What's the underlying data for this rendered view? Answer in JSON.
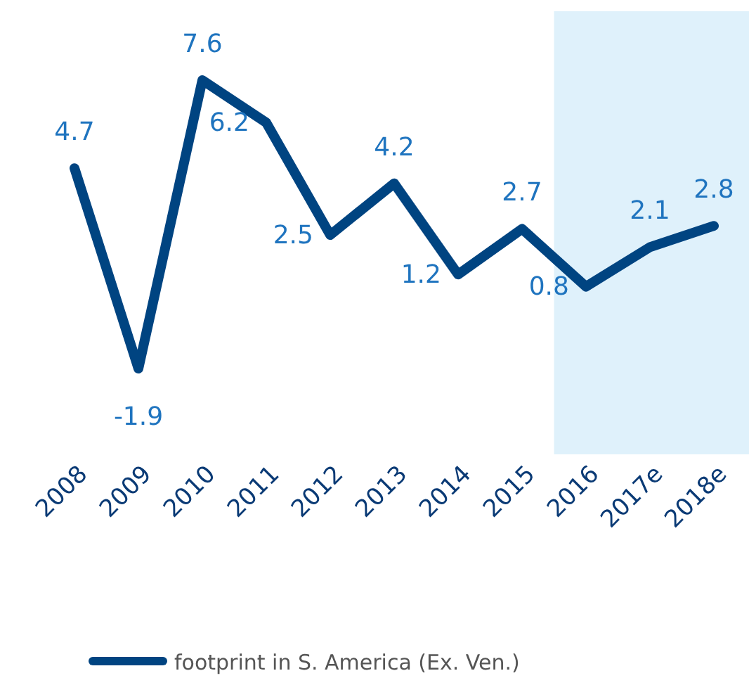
{
  "chart_data": {
    "type": "line",
    "categories": [
      "2008",
      "2009",
      "2010",
      "2011",
      "2012",
      "2013",
      "2014",
      "2015",
      "2016",
      "2017e",
      "2018e"
    ],
    "series": [
      {
        "name": "footprint in S. America (Ex. Ven.)",
        "color": "#004481",
        "values": [
          4.7,
          -1.9,
          7.6,
          6.2,
          2.5,
          4.2,
          1.2,
          2.7,
          0.8,
          2.1,
          2.8
        ]
      }
    ],
    "bands": [
      {
        "axis": "x",
        "from": "2016",
        "to": "2018e",
        "color": "#dff1fb"
      }
    ],
    "data_labels": true,
    "legend": "bottom",
    "marker": "none",
    "line_style": "solid"
  }
}
